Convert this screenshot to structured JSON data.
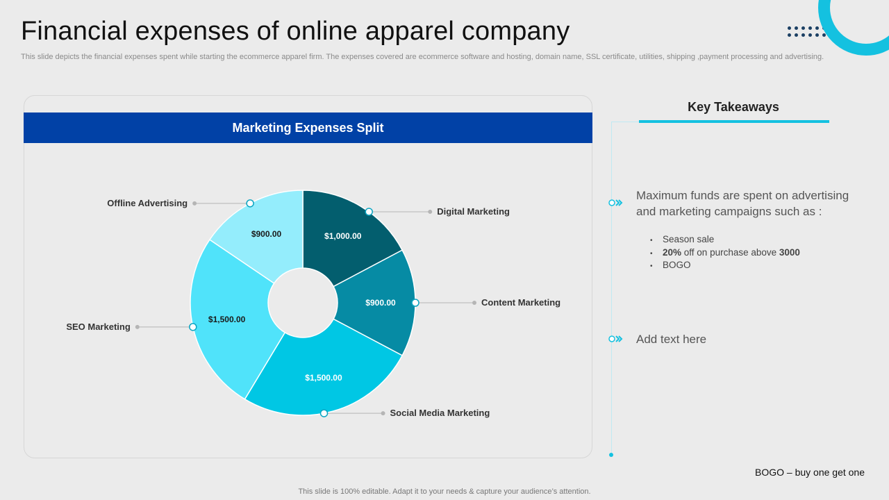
{
  "slide": {
    "title": "Financial expenses of online apparel company",
    "subtitle": "This slide depicts the financial expenses spent while starting the ecommerce apparel firm. The expenses covered are ecommerce software and hosting, domain name, SSL certificate, utilities, shipping ,payment processing and advertising.",
    "footnote": "BOGO – buy one get one",
    "footer": "This slide is 100% editable. Adapt it to your needs & capture your audience’s attention."
  },
  "chart_panel": {
    "heading": "Marketing Expenses Split"
  },
  "chart_data": {
    "type": "pie",
    "title": "Marketing Expenses Split",
    "categories": [
      "Digital Marketing",
      "Content Marketing",
      "Social Media Marketing",
      "SEO Marketing",
      "Offline Advertising"
    ],
    "values": [
      1000,
      900,
      1500,
      1500,
      900
    ],
    "value_labels": [
      "$1,000.00",
      "$900.00",
      "$1,500.00",
      "$1,500.00",
      "$900.00"
    ],
    "colors": [
      "#035e6e",
      "#068ba4",
      "#00c7e4",
      "#50e3fa",
      "#94edfc"
    ],
    "donut_hole": true,
    "labels_outside": true
  },
  "takeaways": {
    "heading": "Key Takeaways",
    "point1": "Maximum funds are spent on advertising and marketing campaigns such as :",
    "bullets": [
      {
        "bold_prefix": "",
        "text": "Season sale",
        "bold_suffix": ""
      },
      {
        "bold_prefix": "20%",
        "text": " off on purchase above ",
        "bold_suffix": "3000"
      },
      {
        "bold_prefix": "",
        "text": "BOGO",
        "bold_suffix": ""
      }
    ],
    "point2": "Add text here",
    "accent": "#14c1e0"
  },
  "colors": {
    "banner": "#0141a6",
    "accent": "#14c1e0",
    "background": "#ebebeb"
  }
}
